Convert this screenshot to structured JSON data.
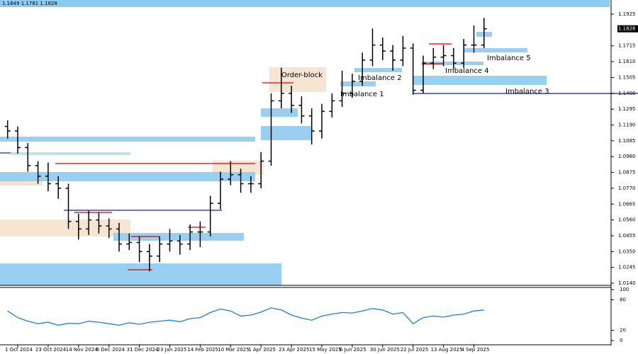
{
  "chart_data": [
    {
      "type": "candlestick",
      "info": "1.1849 1.1781 1.1828",
      "last_price": 1.1828,
      "annotations": [
        "Order-block",
        "Imbalance 2",
        "Imbalance 1",
        "Imbalance 5",
        "Imbalance 4",
        "Imbalance 3"
      ],
      "categories": [
        null,
        "1 Oct 2024",
        null,
        null,
        "23 Oct 2024",
        null,
        null,
        "14 Nov 2024",
        null,
        null,
        "6 Dec 2024",
        null,
        null,
        "31 Dec 2024",
        null,
        null,
        "23 Jan 2025",
        null,
        null,
        "14 Feb 2025",
        null,
        null,
        "10 Mar 2025",
        null,
        null,
        "1 Apr 2025",
        null,
        null,
        "23 Apr 2025",
        null,
        null,
        "15 May 2025",
        null,
        null,
        "6 Jun 2025",
        null,
        null,
        "30 Jun 2025",
        null,
        null,
        "22 Jul 2025",
        null,
        null,
        "13 Aug 2025",
        null,
        null,
        "4 Sep 2025",
        null
      ],
      "open": [
        1.118,
        1.115,
        1.104,
        1.092,
        1.085,
        1.08,
        1.077,
        1.055,
        1.05,
        1.056,
        1.052,
        1.05,
        1.04,
        1.041,
        1.035,
        1.032,
        1.04,
        1.042,
        1.04,
        1.048,
        1.048,
        1.067,
        1.083,
        1.086,
        1.08,
        1.08,
        1.095,
        1.135,
        1.14,
        1.132,
        1.125,
        1.115,
        1.128,
        1.135,
        1.14,
        1.148,
        1.162,
        1.172,
        1.168,
        1.162,
        1.17,
        1.142,
        1.16,
        1.164,
        1.165,
        1.16,
        1.172,
        1.172
      ],
      "high": [
        1.122,
        1.118,
        1.107,
        1.095,
        1.094,
        1.085,
        1.08,
        1.06,
        1.062,
        1.061,
        1.057,
        1.054,
        1.047,
        1.045,
        1.04,
        1.045,
        1.05,
        1.046,
        1.053,
        1.055,
        1.072,
        1.088,
        1.095,
        1.09,
        1.085,
        1.101,
        1.14,
        1.157,
        1.145,
        1.138,
        1.13,
        1.133,
        1.14,
        1.155,
        1.153,
        1.167,
        1.183,
        1.177,
        1.172,
        1.178,
        1.173,
        1.165,
        1.17,
        1.172,
        1.17,
        1.176,
        1.185,
        1.19
      ],
      "low": [
        1.11,
        1.1,
        1.088,
        1.08,
        1.075,
        1.07,
        1.05,
        1.043,
        1.046,
        1.047,
        1.044,
        1.035,
        1.036,
        1.028,
        1.022,
        1.028,
        1.035,
        1.033,
        1.036,
        1.038,
        1.045,
        1.063,
        1.079,
        1.074,
        1.074,
        1.077,
        1.092,
        1.13,
        1.127,
        1.12,
        1.106,
        1.11,
        1.124,
        1.131,
        1.137,
        1.145,
        1.158,
        1.162,
        1.155,
        1.158,
        1.139,
        1.14,
        1.156,
        1.158,
        1.156,
        1.157,
        1.167,
        1.17
      ],
      "close": [
        1.115,
        1.104,
        1.092,
        1.085,
        1.08,
        1.077,
        1.055,
        1.05,
        1.056,
        1.052,
        1.05,
        1.04,
        1.041,
        1.035,
        1.032,
        1.04,
        1.042,
        1.04,
        1.048,
        1.048,
        1.067,
        1.083,
        1.086,
        1.08,
        1.08,
        1.095,
        1.135,
        1.14,
        1.132,
        1.125,
        1.115,
        1.128,
        1.135,
        1.14,
        1.148,
        1.162,
        1.172,
        1.168,
        1.162,
        1.17,
        1.142,
        1.16,
        1.164,
        1.165,
        1.16,
        1.172,
        1.172,
        1.1828
      ],
      "color": "#000000",
      "ylim": [
        1.0126,
        1.1972
      ],
      "yticks": [
        1.1925,
        {
          "value": 1.1715,
          "label": "1.1715"
        },
        {
          "value": 1.161,
          "label": "1.1610"
        },
        {
          "value": 1.1505,
          "label": "1.1505"
        },
        {
          "value": 1.14,
          "label": "1.1400"
        },
        {
          "value": 1.1295,
          "label": "1.1295"
        },
        {
          "value": 1.119,
          "label": "1.1190"
        },
        {
          "value": 1.1085,
          "label": "1.1085"
        },
        {
          "value": 1.098,
          "label": "1.0980"
        },
        {
          "value": 1.0875,
          "label": "1.0875"
        },
        {
          "value": 1.077,
          "label": "1.0770"
        },
        {
          "value": 1.0665,
          "label": "1.0665"
        },
        {
          "value": 1.056,
          "label": "1.0560"
        },
        {
          "value": 1.0455,
          "label": "1.0455"
        },
        {
          "value": 1.035,
          "label": "1.0350"
        },
        {
          "value": 1.0245,
          "label": "1.0245"
        },
        {
          "value": 1.014,
          "label": "1.0140"
        }
      ]
    },
    {
      "type": "line",
      "color": "#1e7fd6",
      "values": [
        58,
        45,
        38,
        33,
        36,
        30,
        34,
        33,
        38,
        36,
        33,
        30,
        35,
        32,
        36,
        38,
        40,
        37,
        43,
        45,
        55,
        62,
        58,
        48,
        50,
        56,
        64,
        60,
        50,
        44,
        40,
        48,
        52,
        55,
        54,
        58,
        63,
        60,
        52,
        55,
        33,
        45,
        48,
        46,
        50,
        52,
        58,
        60
      ],
      "ylim": [
        0,
        100
      ],
      "yticks": [
        100,
        80,
        20,
        0
      ]
    }
  ]
}
